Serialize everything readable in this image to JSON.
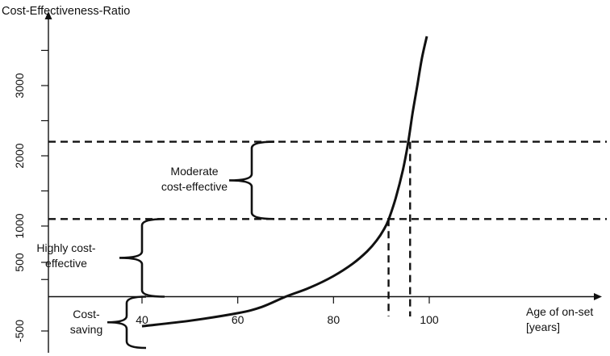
{
  "chart_data": {
    "type": "line",
    "title": "Cost-Effectiveness-Ratio",
    "xlabel": [
      "Age of on-set",
      "[years]"
    ],
    "ylabel": "Cost-Effectiveness-Ratio",
    "x_ticks": [
      "40",
      "60",
      "80",
      "100"
    ],
    "y_ticks": [
      "-500",
      "500",
      "1000",
      "2000",
      "3000"
    ],
    "series": [
      {
        "x": [
          40,
          50,
          60,
          65,
          70,
          75,
          80,
          84,
          87,
          89,
          90.5,
          91.5,
          93,
          94.5,
          95.5,
          96.5,
          97.5,
          98.5,
          99.5
        ],
        "y": [
          -430,
          -350,
          -240,
          -150,
          0,
          130,
          300,
          480,
          650,
          800,
          950,
          1090,
          1400,
          1800,
          2150,
          2600,
          3000,
          3400,
          3700
        ]
      }
    ],
    "thresholds": [
      {
        "y": 1100,
        "x_drop": 91.5
      },
      {
        "y": 2200,
        "x_drop": 96
      }
    ],
    "regions": [
      {
        "lines": [
          "Moderate",
          "cost-effective"
        ]
      },
      {
        "lines": [
          "Highly cost-",
          "effective"
        ]
      },
      {
        "lines": [
          "Cost-",
          "saving"
        ]
      }
    ]
  }
}
